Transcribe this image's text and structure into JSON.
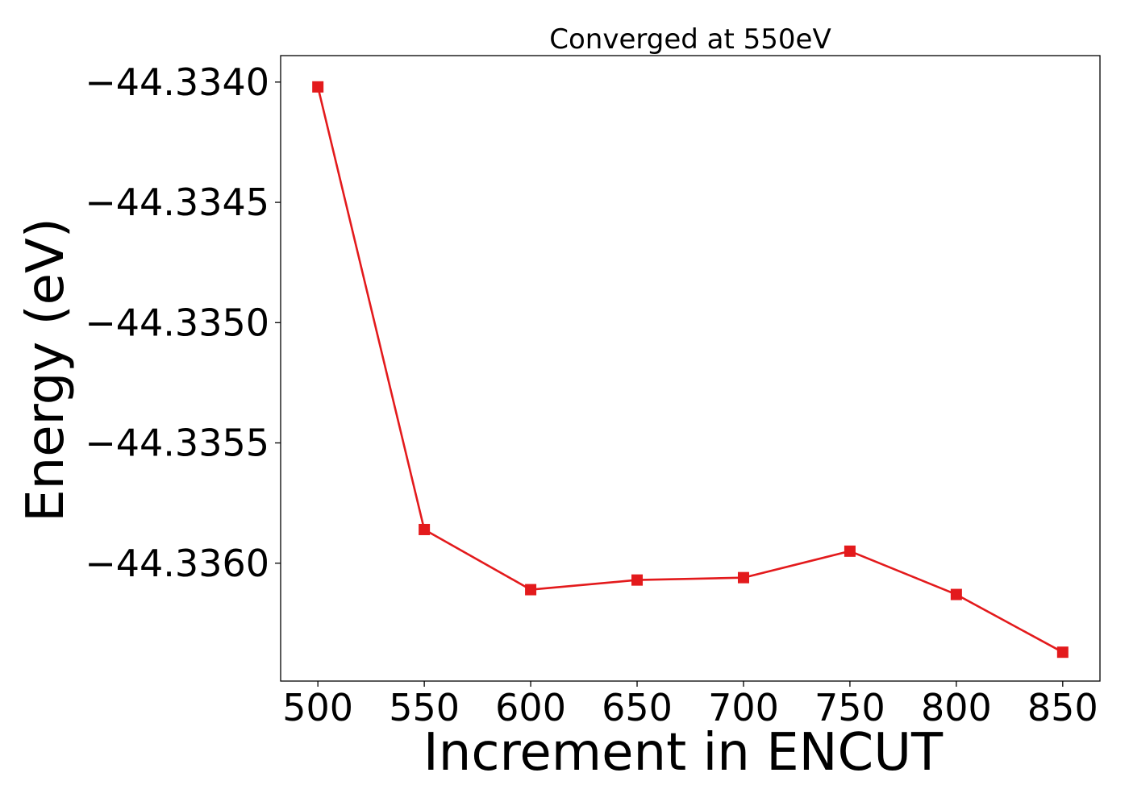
{
  "chart_data": {
    "type": "line",
    "title": "Converged at 550eV",
    "xlabel": "Increment in ENCUT",
    "ylabel": "Energy (eV)",
    "x": [
      500,
      550,
      600,
      650,
      700,
      750,
      800,
      850
    ],
    "series": [
      {
        "values": [
          -44.33402,
          -44.33586,
          -44.33611,
          -44.33607,
          -44.33606,
          -44.33595,
          -44.33613,
          -44.33637
        ],
        "color": "#e31a1c",
        "marker": "square"
      }
    ],
    "xticks": [
      500,
      550,
      600,
      650,
      700,
      750,
      800,
      850
    ],
    "xtick_labels": [
      "500",
      "550",
      "600",
      "650",
      "700",
      "750",
      "800",
      "850"
    ],
    "yticks": [
      -44.334,
      -44.3345,
      -44.335,
      -44.3355,
      -44.336
    ],
    "ytick_labels": [
      "−44.3340",
      "−44.3345",
      "−44.3350",
      "−44.3355",
      "−44.3360"
    ],
    "xlim": [
      482.5,
      867.5
    ],
    "ylim": [
      -44.33649,
      -44.33389
    ],
    "grid": false,
    "legend": "none"
  }
}
